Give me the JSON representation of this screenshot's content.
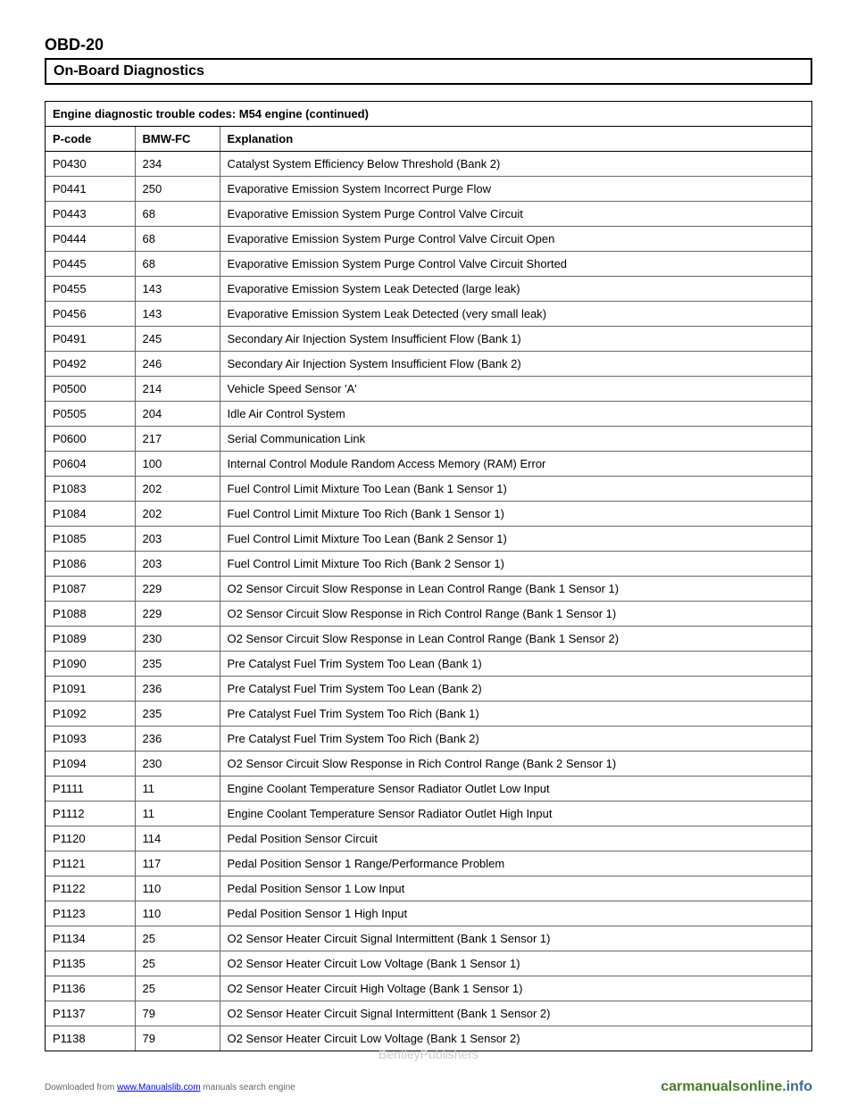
{
  "page_id": "OBD-20",
  "section_title": "On-Board Diagnostics",
  "table": {
    "title": "Engine diagnostic trouble codes: M54 engine (continued)",
    "columns": [
      "P-code",
      "BMW-FC",
      "Explanation"
    ],
    "rows": [
      [
        "P0430",
        "234",
        "Catalyst System Efficiency Below Threshold (Bank 2)"
      ],
      [
        "P0441",
        "250",
        "Evaporative Emission System Incorrect Purge Flow"
      ],
      [
        "P0443",
        "68",
        "Evaporative Emission System Purge Control Valve Circuit"
      ],
      [
        "P0444",
        "68",
        "Evaporative Emission System Purge Control Valve Circuit Open"
      ],
      [
        "P0445",
        "68",
        "Evaporative Emission System Purge Control Valve Circuit Shorted"
      ],
      [
        "P0455",
        "143",
        "Evaporative Emission System Leak Detected (large leak)"
      ],
      [
        "P0456",
        "143",
        "Evaporative Emission System Leak Detected (very small leak)"
      ],
      [
        "P0491",
        "245",
        "Secondary Air Injection System Insufficient Flow (Bank 1)"
      ],
      [
        "P0492",
        "246",
        "Secondary Air Injection System Insufficient Flow (Bank 2)"
      ],
      [
        "P0500",
        "214",
        "Vehicle Speed Sensor 'A'"
      ],
      [
        "P0505",
        "204",
        "Idle Air Control System"
      ],
      [
        "P0600",
        "217",
        "Serial Communication Link"
      ],
      [
        "P0604",
        "100",
        "Internal Control Module Random Access Memory (RAM) Error"
      ],
      [
        "P1083",
        "202",
        "Fuel Control Limit Mixture Too Lean (Bank 1 Sensor 1)"
      ],
      [
        "P1084",
        "202",
        "Fuel Control Limit Mixture Too Rich (Bank 1 Sensor 1)"
      ],
      [
        "P1085",
        "203",
        "Fuel Control Limit Mixture Too Lean (Bank 2 Sensor 1)"
      ],
      [
        "P1086",
        "203",
        "Fuel Control Limit Mixture Too Rich (Bank 2 Sensor 1)"
      ],
      [
        "P1087",
        "229",
        "O2 Sensor Circuit Slow Response in Lean Control Range (Bank 1 Sensor 1)"
      ],
      [
        "P1088",
        "229",
        "O2 Sensor Circuit Slow Response in Rich Control Range (Bank 1 Sensor 1)"
      ],
      [
        "P1089",
        "230",
        "O2 Sensor Circuit Slow Response in Lean Control Range (Bank 1 Sensor 2)"
      ],
      [
        "P1090",
        "235",
        "Pre Catalyst Fuel Trim System Too Lean (Bank 1)"
      ],
      [
        "P1091",
        "236",
        "Pre Catalyst Fuel Trim System Too Lean (Bank 2)"
      ],
      [
        "P1092",
        "235",
        "Pre Catalyst Fuel Trim System Too Rich (Bank 1)"
      ],
      [
        "P1093",
        "236",
        "Pre Catalyst Fuel Trim System Too Rich (Bank 2)"
      ],
      [
        "P1094",
        "230",
        "O2 Sensor Circuit Slow Response in Rich Control Range (Bank 2 Sensor 1)"
      ],
      [
        "P1111",
        "11",
        "Engine Coolant Temperature Sensor Radiator Outlet Low Input"
      ],
      [
        "P1112",
        "11",
        "Engine Coolant Temperature Sensor Radiator Outlet High Input"
      ],
      [
        "P1120",
        "114",
        "Pedal Position Sensor Circuit"
      ],
      [
        "P1121",
        "117",
        "Pedal Position Sensor 1 Range/Performance Problem"
      ],
      [
        "P1122",
        "110",
        "Pedal Position Sensor 1 Low Input"
      ],
      [
        "P1123",
        "110",
        "Pedal Position Sensor 1 High Input"
      ],
      [
        "P1134",
        "25",
        "O2 Sensor Heater Circuit Signal Intermittent (Bank 1 Sensor 1)"
      ],
      [
        "P1135",
        "25",
        "O2 Sensor Heater Circuit Low Voltage (Bank 1 Sensor 1)"
      ],
      [
        "P1136",
        "25",
        "O2 Sensor Heater Circuit High Voltage (Bank 1 Sensor 1)"
      ],
      [
        "P1137",
        "79",
        "O2 Sensor Heater Circuit Signal Intermittent (Bank 1 Sensor 2)"
      ],
      [
        "P1138",
        "79",
        "O2 Sensor Heater Circuit Low Voltage (Bank 1 Sensor 2)"
      ]
    ]
  },
  "footer": {
    "download_text": "Downloaded from ",
    "download_link": "www.Manualslib.com",
    "download_suffix": " manuals search engine",
    "site_green": "carmanualsonline",
    "site_blue": ".info"
  },
  "watermark": "BentleyPublishers"
}
